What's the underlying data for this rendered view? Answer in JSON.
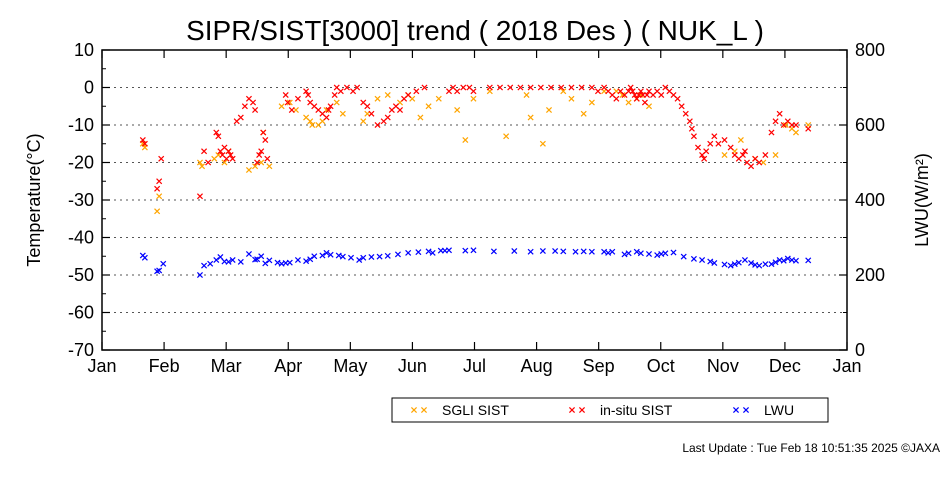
{
  "chart_data": {
    "type": "scatter",
    "title": "SIPR/SIST[3000] trend ( 2018 Des ) ( NUK_L )",
    "ylabel_left": "Temperature(°C)",
    "ylabel_right": "LWU(W/m²)",
    "ylim_left": [
      -70,
      10
    ],
    "ylim_right": [
      0,
      800
    ],
    "y_ticks_left": [
      "10",
      "0",
      "-10",
      "-20",
      "-30",
      "-40",
      "-50",
      "-60",
      "-70"
    ],
    "y_ticks_right": [
      "800",
      "600",
      "400",
      "200",
      "0"
    ],
    "x_ticks": [
      "Jan",
      "Feb",
      "Mar",
      "Apr",
      "May",
      "Jun",
      "Jul",
      "Aug",
      "Sep",
      "Oct",
      "Nov",
      "Dec",
      "Jan"
    ],
    "xlim_days": [
      0,
      365
    ],
    "x_unit": "day of year",
    "grid": "dotted horizontal",
    "legend_position": "bottom-right",
    "footer": "Last Update : Tue Feb 18 10:51:35 2025  ©JAXA",
    "series": [
      {
        "name": "SGLI SIST",
        "axis": "left",
        "color": "#ffa500",
        "x": [
          20,
          21,
          27,
          28,
          48,
          49,
          55,
          57,
          60,
          62,
          72,
          75,
          78,
          79,
          82,
          88,
          92,
          95,
          100,
          102,
          103,
          106,
          108,
          110,
          115,
          118,
          128,
          130,
          135,
          140,
          146,
          150,
          152,
          156,
          160,
          165,
          174,
          178,
          182,
          190,
          198,
          208,
          210,
          216,
          219,
          226,
          230,
          236,
          240,
          246,
          252,
          255,
          258,
          262,
          264,
          268,
          305,
          310,
          313,
          320,
          324,
          330,
          335,
          338,
          340,
          346
        ],
        "y": [
          -15,
          -16,
          -33,
          -29,
          -20,
          -21,
          -19,
          -18,
          -20,
          -17,
          -22,
          -21,
          -20,
          -12,
          -21,
          -5,
          -4,
          -6,
          -8,
          -9,
          -10,
          -10,
          -9,
          -6,
          -4,
          -7,
          -9,
          -7,
          -3,
          -2,
          -4,
          -2,
          -3,
          -8,
          -5,
          -3,
          -6,
          -14,
          -3,
          -1,
          -13,
          -2,
          -8,
          -15,
          -6,
          -1,
          -3,
          -7,
          -4,
          -1,
          -1,
          -2,
          -4,
          -3,
          -2,
          -5,
          -18,
          -17,
          -14,
          -19,
          -20,
          -18,
          -10,
          -11,
          -12,
          -10
        ]
      },
      {
        "name": "in-situ SIST",
        "axis": "left",
        "color": "#ff0000",
        "x": [
          20,
          21,
          27,
          28,
          29,
          48,
          50,
          52,
          56,
          57,
          58,
          59,
          60,
          61,
          62,
          63,
          64,
          66,
          68,
          70,
          72,
          74,
          75,
          76,
          77,
          78,
          79,
          80,
          81,
          90,
          91,
          93,
          96,
          100,
          101,
          102,
          104,
          106,
          108,
          110,
          111,
          112,
          114,
          115,
          117,
          120,
          123,
          125,
          128,
          130,
          132,
          135,
          138,
          140,
          142,
          144,
          146,
          148,
          150,
          154,
          158,
          170,
          172,
          174,
          177,
          180,
          182,
          190,
          195,
          200,
          205,
          210,
          215,
          220,
          225,
          230,
          235,
          240,
          243,
          246,
          248,
          250,
          252,
          254,
          256,
          258,
          259,
          260,
          261,
          262,
          263,
          264,
          265,
          266,
          267,
          268,
          270,
          272,
          274,
          276,
          278,
          280,
          282,
          284,
          286,
          288,
          289,
          290,
          292,
          294,
          295,
          296,
          298,
          300,
          302,
          305,
          308,
          310,
          312,
          314,
          315,
          316,
          318,
          320,
          322,
          325,
          328,
          330,
          332,
          334,
          336,
          338,
          340,
          346
        ],
        "y": [
          -14,
          -15,
          -27,
          -25,
          -19,
          -29,
          -17,
          -20,
          -12,
          -13,
          -17,
          -18,
          -16,
          -19,
          -17,
          -18,
          -19,
          -9,
          -8,
          -5,
          -3,
          -4,
          -6,
          -20,
          -18,
          -17,
          -12,
          -14,
          -19,
          -2,
          -4,
          -6,
          -3,
          -1,
          -2,
          -4,
          -5,
          -6,
          -7,
          -8,
          -6,
          -5,
          -2,
          0,
          -1,
          0,
          -1,
          0,
          -4,
          -5,
          -7,
          -10,
          -9,
          -8,
          -6,
          -5,
          -6,
          -3,
          -2,
          -1,
          0,
          -1,
          0,
          -1,
          0,
          0,
          -1,
          0,
          0,
          0,
          0,
          0,
          0,
          0,
          0,
          0,
          0,
          0,
          -1,
          0,
          -1,
          -2,
          -3,
          -1,
          -2,
          -1,
          0,
          -1,
          -2,
          -3,
          -2,
          -1,
          -2,
          -4,
          -2,
          -1,
          -2,
          -1,
          -2,
          0,
          -1,
          -2,
          -3,
          -5,
          -7,
          -9,
          -11,
          -13,
          -16,
          -18,
          -19,
          -17,
          -15,
          -13,
          -15,
          -14,
          -16,
          -18,
          -19,
          -18,
          -17,
          -20,
          -21,
          -19,
          -20,
          -18,
          -12,
          -9,
          -7,
          -10,
          -9,
          -10,
          -10,
          -11
        ]
      },
      {
        "name": "LWU",
        "axis": "right",
        "color": "#0000ff",
        "x": [
          20,
          21,
          27,
          28,
          30,
          48,
          50,
          53,
          56,
          58,
          60,
          62,
          64,
          68,
          72,
          75,
          76,
          78,
          80,
          82,
          86,
          88,
          90,
          92,
          96,
          100,
          102,
          104,
          108,
          110,
          112,
          116,
          118,
          122,
          126,
          128,
          132,
          136,
          140,
          145,
          150,
          155,
          160,
          162,
          166,
          168,
          170,
          178,
          182,
          192,
          202,
          210,
          216,
          222,
          226,
          232,
          236,
          240,
          246,
          248,
          250,
          256,
          258,
          262,
          264,
          268,
          272,
          274,
          276,
          280,
          285,
          290,
          294,
          298,
          300,
          305,
          308,
          310,
          312,
          315,
          318,
          320,
          322,
          325,
          328,
          330,
          332,
          334,
          336,
          338,
          340,
          346
        ],
        "y": [
          252,
          246,
          210,
          212,
          230,
          200,
          225,
          230,
          240,
          248,
          236,
          235,
          240,
          235,
          256,
          241,
          242,
          250,
          231,
          239,
          233,
          230,
          232,
          233,
          240,
          237,
          242,
          250,
          252,
          259,
          254,
          252,
          249,
          246,
          240,
          246,
          248,
          249,
          251,
          255,
          259,
          261,
          263,
          259,
          265,
          265,
          266,
          265,
          266,
          263,
          264,
          262,
          264,
          264,
          263,
          262,
          263,
          262,
          262,
          259,
          262,
          255,
          258,
          262,
          258,
          256,
          253,
          256,
          258,
          260,
          249,
          243,
          240,
          236,
          232,
          228,
          225,
          229,
          233,
          240,
          232,
          227,
          225,
          229,
          229,
          234,
          240,
          238,
          244,
          240,
          238,
          239
        ]
      }
    ]
  }
}
